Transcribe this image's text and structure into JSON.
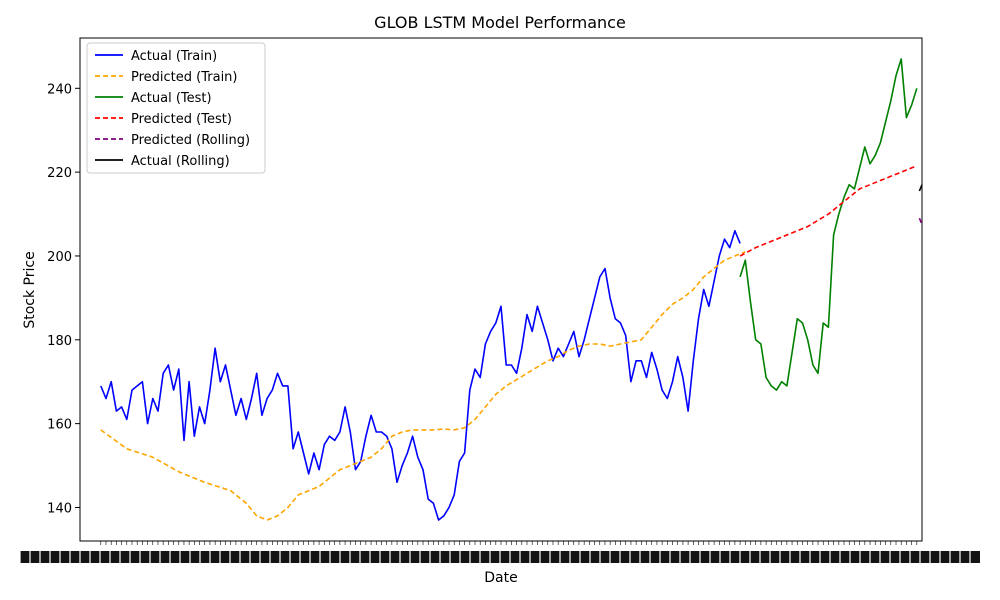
{
  "chart_data": {
    "type": "line",
    "title": "GLOB LSTM Model Performance",
    "xlabel": "Date",
    "ylabel": "Stock Price",
    "xlim": [
      -4,
      158
    ],
    "ylim": [
      132,
      252
    ],
    "yticks": [
      140,
      160,
      180,
      200,
      220,
      240
    ],
    "grid": false,
    "legend_position": "upper-left",
    "series": [
      {
        "name": "Actual (Train)",
        "color": "#0000ff",
        "dash": "solid",
        "x": [
          0,
          1,
          2,
          3,
          4,
          5,
          6,
          7,
          8,
          9,
          10,
          11,
          12,
          13,
          14,
          15,
          16,
          17,
          18,
          19,
          20,
          21,
          22,
          23,
          24,
          25,
          26,
          27,
          28,
          29,
          30,
          31,
          32,
          33,
          34,
          35,
          36,
          37,
          38,
          39,
          40,
          41,
          42,
          43,
          44,
          45,
          46,
          47,
          48,
          49,
          50,
          51,
          52,
          53,
          54,
          55,
          56,
          57,
          58,
          59,
          60,
          61,
          62,
          63,
          64,
          65,
          66,
          67,
          68,
          69,
          70,
          71,
          72,
          73,
          74,
          75,
          76,
          77,
          78,
          79,
          80,
          81,
          82,
          83,
          84,
          85,
          86,
          87,
          88,
          89,
          90,
          91,
          92,
          93,
          94,
          95,
          96,
          97,
          98,
          99,
          100,
          101,
          102,
          103,
          104,
          105,
          106,
          107,
          108,
          109,
          110,
          111,
          112,
          113,
          114,
          115,
          116,
          117,
          118,
          119,
          120,
          121,
          122,
          123
        ],
        "y": [
          169,
          166,
          170,
          163,
          164,
          161,
          168,
          169,
          170,
          160,
          166,
          163,
          172,
          174,
          168,
          173,
          156,
          170,
          157,
          164,
          160,
          168,
          178,
          170,
          174,
          168,
          162,
          166,
          161,
          166,
          172,
          162,
          166,
          168,
          172,
          169,
          169,
          154,
          158,
          153,
          148,
          153,
          149,
          155,
          157,
          156,
          158,
          164,
          158,
          149,
          151,
          157,
          162,
          158,
          158,
          157,
          154,
          146,
          150,
          153,
          157,
          152,
          149,
          142,
          141,
          137,
          138,
          140,
          143,
          151,
          153,
          168,
          173,
          171,
          179,
          182,
          184,
          188,
          174,
          174,
          172,
          178,
          186,
          182,
          188,
          184,
          180,
          175,
          178,
          176,
          179,
          182,
          176,
          180,
          185,
          190,
          195,
          197,
          190,
          185,
          184,
          181,
          170,
          175,
          175,
          171,
          177,
          173,
          168,
          166,
          170,
          176,
          171,
          163,
          175,
          185,
          192,
          188,
          194,
          200,
          204,
          202,
          206,
          203
        ],
        "values_note": ""
      },
      {
        "name": "Predicted (Train)",
        "color": "#ffa500",
        "dash": "dashed",
        "x": [
          0,
          5,
          10,
          15,
          20,
          25,
          28,
          30,
          32,
          34,
          36,
          38,
          40,
          42,
          44,
          46,
          48,
          50,
          52,
          54,
          56,
          58,
          60,
          62,
          64,
          66,
          68,
          70,
          72,
          74,
          76,
          78,
          80,
          82,
          84,
          86,
          88,
          90,
          92,
          94,
          96,
          98,
          100,
          102,
          104,
          106,
          108,
          110,
          112,
          114,
          116,
          118,
          120,
          122,
          124
        ],
        "y": [
          158.5,
          154,
          152,
          148.5,
          146,
          144,
          141,
          138,
          137,
          138,
          140,
          143,
          144,
          145,
          147,
          149,
          150,
          151,
          152,
          154,
          157,
          158,
          158.5,
          158.5,
          158.5,
          158.7,
          158.5,
          159,
          161,
          164,
          167,
          169,
          170.5,
          172,
          173.5,
          175,
          176,
          177.5,
          178.5,
          179,
          179,
          178.5,
          179,
          179.5,
          180,
          183,
          186,
          188.5,
          190,
          192,
          195,
          197,
          199,
          200,
          201
        ]
      },
      {
        "name": "Actual (Test)",
        "color": "#008000",
        "dash": "solid",
        "x": [
          123,
          124,
          125,
          126,
          127,
          128,
          129,
          130,
          131,
          132,
          133,
          134,
          135,
          136,
          137,
          138,
          139,
          140,
          141,
          142,
          143,
          144,
          145,
          146,
          147,
          148,
          149,
          150,
          151,
          152,
          153,
          154,
          155,
          156,
          157
        ],
        "y": [
          195,
          199,
          189,
          180,
          179,
          171,
          169,
          168,
          170,
          169,
          177,
          185,
          184,
          180,
          174,
          172,
          184,
          183,
          205,
          210,
          214,
          217,
          216,
          221,
          226,
          222,
          224,
          227,
          232,
          237,
          243,
          247,
          233,
          236,
          240
        ],
        "values_note": ""
      },
      {
        "name": "Predicted (Test)",
        "color": "#ff0000",
        "dash": "dashed",
        "x": [
          123,
          126,
          128,
          130,
          132,
          134,
          136,
          138,
          140,
          142,
          144,
          146,
          148,
          150,
          152,
          154,
          156,
          157
        ],
        "y": [
          200,
          202,
          203,
          204,
          205,
          206,
          207,
          208.5,
          210,
          212,
          214,
          216,
          217,
          218,
          219,
          220,
          221,
          221.5
        ]
      },
      {
        "name": "Predicted (Rolling)",
        "color": "#800080",
        "dash": "dashed",
        "x": [
          157.5,
          158
        ],
        "y": [
          209,
          207.5
        ]
      },
      {
        "name": "Actual (Rolling)",
        "color": "#000000",
        "dash": "solid",
        "x": [
          157.5,
          158
        ],
        "y": [
          215.5,
          217
        ]
      }
    ]
  }
}
